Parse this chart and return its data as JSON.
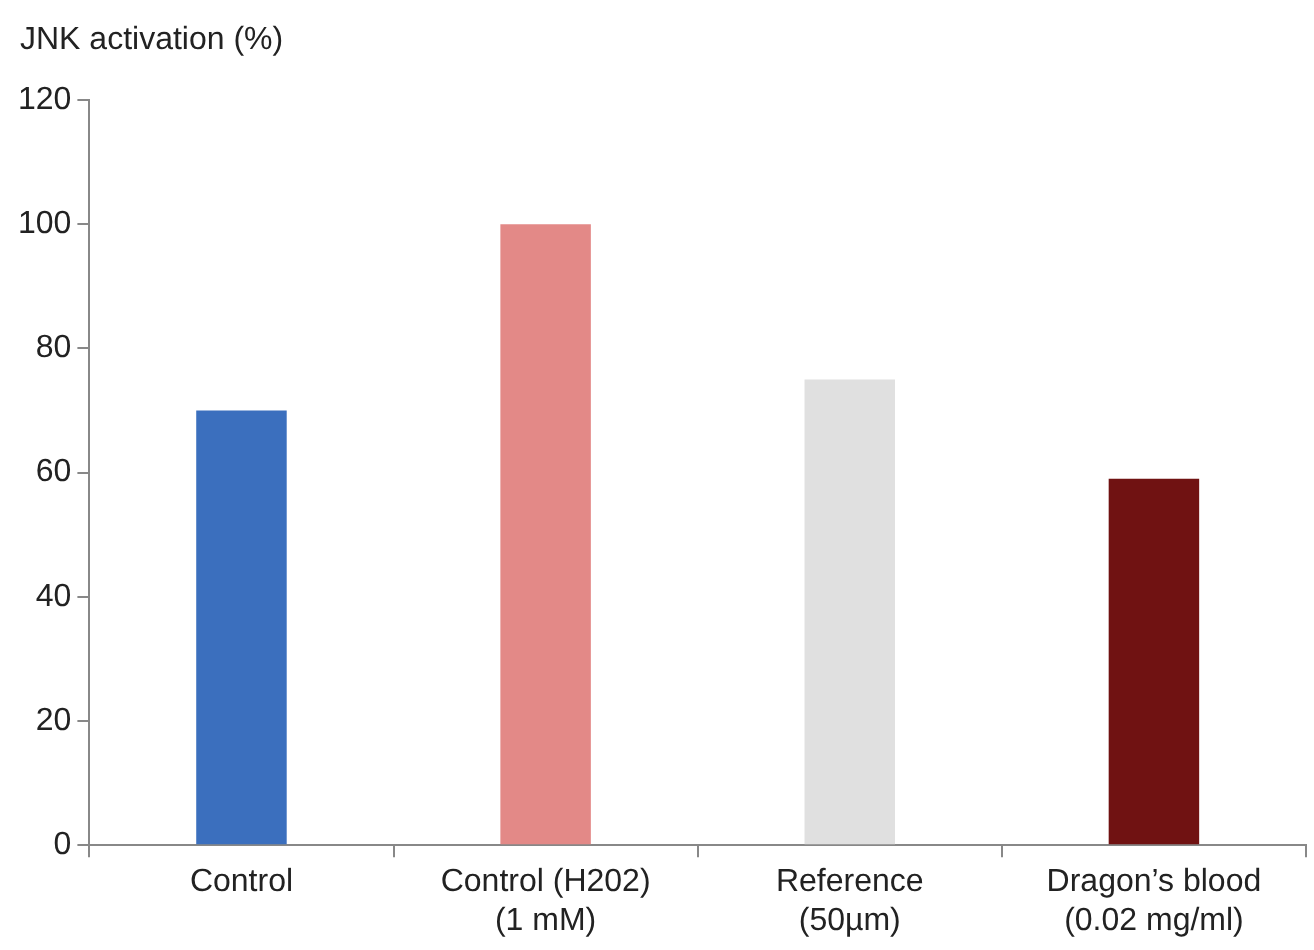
{
  "chart_data": {
    "type": "bar",
    "ylabel": "JNK activation (%)",
    "categories": [
      "Control",
      "Control (H202) (1 mM)",
      "Reference (50µm)",
      "Dragon’s blood (0.02 mg/ml)"
    ],
    "values": [
      70,
      100,
      75,
      59
    ],
    "colors": [
      "#3b6fbe",
      "#e38987",
      "#e0e0e0",
      "#701212"
    ],
    "ylim": [
      0,
      120
    ],
    "yticks": [
      0,
      20,
      40,
      60,
      80,
      100,
      120
    ],
    "grid": false,
    "legend": false
  }
}
